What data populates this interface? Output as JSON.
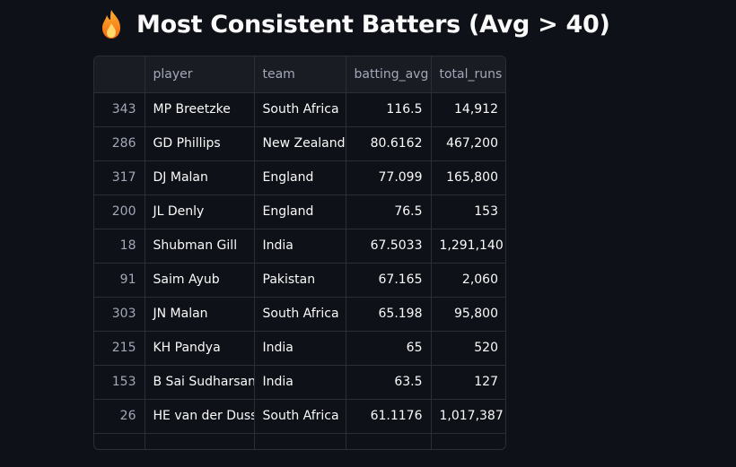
{
  "title": {
    "icon": "fire-icon",
    "text": "Most Consistent Batters (Avg > 40)"
  },
  "table": {
    "columns": [
      "",
      "player",
      "team",
      "batting_avg",
      "total_runs"
    ],
    "rows": [
      {
        "index": "343",
        "player": "MP Breetzke",
        "team": "South Africa",
        "batting_avg": "116.5",
        "total_runs": "14,912"
      },
      {
        "index": "286",
        "player": "GD Phillips",
        "team": "New Zealand",
        "batting_avg": "80.6162",
        "total_runs": "467,200"
      },
      {
        "index": "317",
        "player": "DJ Malan",
        "team": "England",
        "batting_avg": "77.099",
        "total_runs": "165,800"
      },
      {
        "index": "200",
        "player": "JL Denly",
        "team": "England",
        "batting_avg": "76.5",
        "total_runs": "153"
      },
      {
        "index": "18",
        "player": "Shubman Gill",
        "team": "India",
        "batting_avg": "67.5033",
        "total_runs": "1,291,140"
      },
      {
        "index": "91",
        "player": "Saim Ayub",
        "team": "Pakistan",
        "batting_avg": "67.165",
        "total_runs": "2,060"
      },
      {
        "index": "303",
        "player": "JN Malan",
        "team": "South Africa",
        "batting_avg": "65.198",
        "total_runs": "95,800"
      },
      {
        "index": "215",
        "player": "KH Pandya",
        "team": "India",
        "batting_avg": "65",
        "total_runs": "520"
      },
      {
        "index": "153",
        "player": "B Sai Sudharsan",
        "team": "India",
        "batting_avg": "63.5",
        "total_runs": "127"
      },
      {
        "index": "26",
        "player": "HE van der Dussen",
        "team": "South Africa",
        "batting_avg": "61.1176",
        "total_runs": "1,017,387"
      }
    ]
  }
}
